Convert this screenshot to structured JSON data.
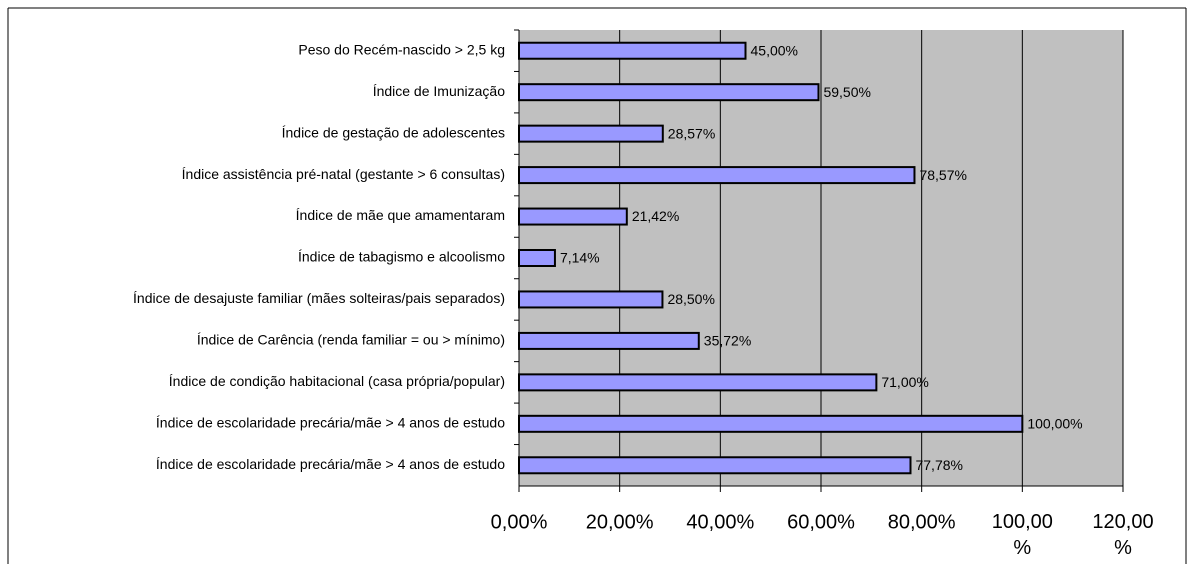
{
  "chart_data": {
    "type": "bar",
    "orientation": "horizontal",
    "categories": [
      "Peso do Recém-nascido > 2,5 kg",
      "Índice de Imunização",
      "Índice de gestação de adolescentes",
      "Índice assistência pré-natal (gestante > 6 consultas)",
      "Índice de mãe que amamentaram",
      "Índice de tabagismo e alcoolismo",
      "Índice de desajuste familiar (mães solteiras/pais separados)",
      "Índice de Carência (renda familiar = ou > mínimo)",
      "Índice de condição habitacional (casa própria/popular)",
      "Índice de escolaridade precária/mãe > 4 anos de estudo",
      "Índice de escolaridade precária/mãe > 4 anos de estudo"
    ],
    "values": [
      45,
      59.5,
      28.57,
      78.57,
      21.42,
      7.14,
      28.5,
      35.72,
      71,
      100,
      77.78
    ],
    "value_labels": [
      "45,00%",
      "59,50%",
      "28,57%",
      "78,57%",
      "21,42%",
      "7,14%",
      "28,50%",
      "35,72%",
      "71,00%",
      "100,00%",
      "77,78%"
    ],
    "color": "#9999ff",
    "xlim": [
      0,
      120
    ],
    "xticks": [
      {
        "value": 0,
        "label": "0,00%"
      },
      {
        "value": 20,
        "label": "20,00%"
      },
      {
        "value": 40,
        "label": "40,00%"
      },
      {
        "value": 60,
        "label": "60,00%"
      },
      {
        "value": 80,
        "label": "80,00%"
      },
      {
        "value": 100,
        "label": "100,00 %"
      },
      {
        "value": 120,
        "label": "120,00 %"
      }
    ],
    "grid": true
  }
}
